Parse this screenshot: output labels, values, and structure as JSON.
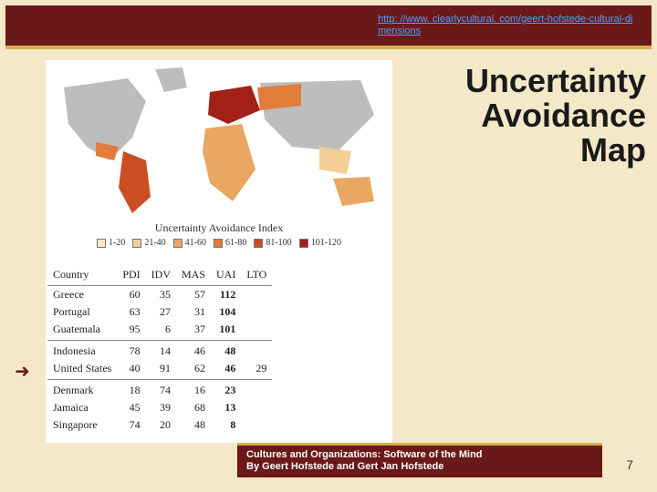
{
  "header": {
    "link_text": "http: //www. clearlycultural. com/geert-hofstede-cultural-dimensions"
  },
  "title": {
    "line1": "Uncertainty",
    "line2": "Avoidance",
    "line3": "Map"
  },
  "map": {
    "caption_line1": "Uncertainty Avoidance Index",
    "caption_line2_prefix": "",
    "legend": [
      {
        "label": "1-20",
        "color": "#f7e7c6"
      },
      {
        "label": "21-40",
        "color": "#f2cf94"
      },
      {
        "label": "41-60",
        "color": "#eaa763"
      },
      {
        "label": "61-80",
        "color": "#e27c3b"
      },
      {
        "label": "81-100",
        "color": "#c94e23"
      },
      {
        "label": "101-120",
        "color": "#a22015"
      }
    ],
    "land_color": "#bdbdbd",
    "ocean_color": "#ffffff"
  },
  "table": {
    "columns": [
      "Country",
      "PDI",
      "IDV",
      "MAS",
      "UAI",
      "LTO"
    ],
    "groups": [
      {
        "rows": [
          {
            "c": "Greece",
            "v": [
              "60",
              "35",
              "57",
              "112",
              ""
            ],
            "bold_idx": 3
          },
          {
            "c": "Portugal",
            "v": [
              "63",
              "27",
              "31",
              "104",
              ""
            ],
            "bold_idx": 3
          },
          {
            "c": "Guatemala",
            "v": [
              "95",
              "6",
              "37",
              "101",
              ""
            ],
            "bold_idx": 3
          }
        ]
      },
      {
        "rows": [
          {
            "c": "Indonesia",
            "v": [
              "78",
              "14",
              "46",
              "48",
              ""
            ],
            "bold_idx": 3
          },
          {
            "c": "United States",
            "v": [
              "40",
              "91",
              "62",
              "46",
              "29"
            ],
            "bold_idx": 3
          }
        ]
      },
      {
        "rows": [
          {
            "c": "Denmark",
            "v": [
              "18",
              "74",
              "16",
              "23",
              ""
            ],
            "bold_idx": 3
          },
          {
            "c": "Jamaica",
            "v": [
              "45",
              "39",
              "68",
              "13",
              ""
            ],
            "bold_idx": 3
          },
          {
            "c": "Singapore",
            "v": [
              "74",
              "20",
              "48",
              "8",
              ""
            ],
            "bold_idx": 3
          }
        ]
      }
    ]
  },
  "footer": {
    "line1": "Cultures and Organizations: Software of the Mind",
    "line2": "By Geert Hofstede and Gert Jan Hofstede"
  },
  "page_number": "7",
  "colors": {
    "band": "#6a1818",
    "accent": "#d4b050",
    "slide_bg": "#f5e8c8"
  }
}
